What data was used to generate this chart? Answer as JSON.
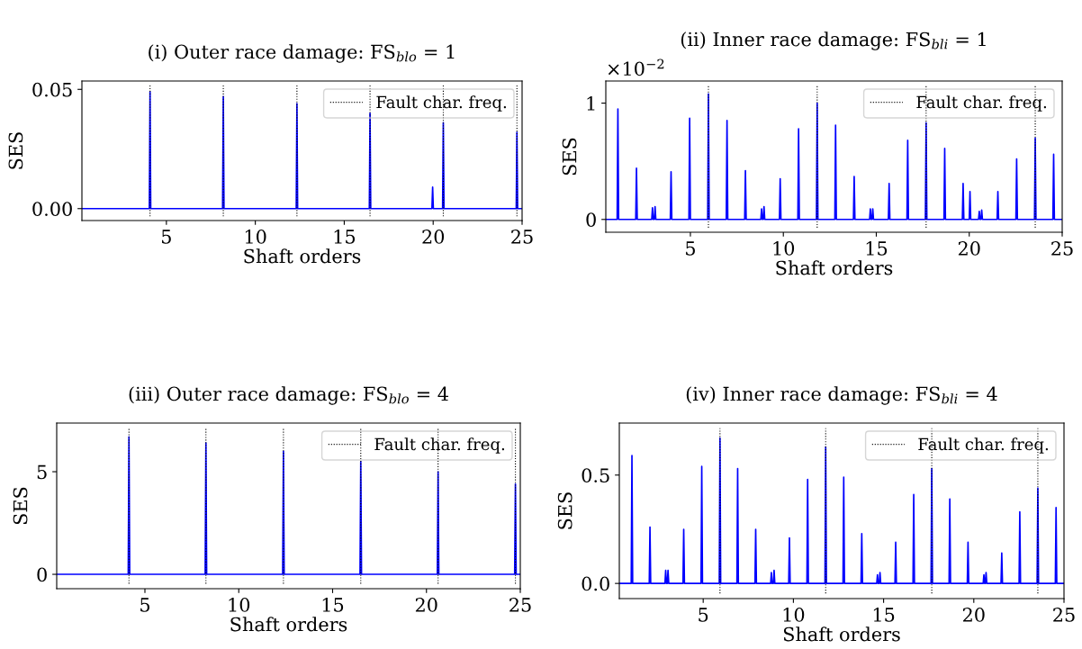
{
  "chart_data": [
    {
      "type": "line",
      "title": "(i) Outer race damage: FS$_{blo}$ = 1",
      "xlabel": "Shaft orders",
      "ylabel": "SES",
      "color": "#0000ff",
      "legend": "top right",
      "x": [
        0.25,
        4.04,
        4.08,
        4.12,
        8.16,
        8.2,
        8.24,
        12.3,
        12.34,
        12.38,
        16.41,
        16.45,
        16.49,
        19.93,
        19.97,
        20.01,
        20.53,
        20.57,
        20.61,
        24.67,
        24.71,
        24.75,
        25
      ],
      "values": [
        0,
        0,
        0.049,
        0,
        0,
        0.047,
        0,
        0,
        0.044,
        0,
        0,
        0.04,
        0,
        0,
        0.009,
        0,
        0,
        0.036,
        0,
        0,
        0.032,
        0,
        0
      ],
      "xlim": [
        0.25,
        25
      ],
      "ylim": [
        -0.005,
        0.0535
      ],
      "xticks": [
        5,
        10,
        15,
        20,
        25
      ],
      "yticks": [
        {
          "value": 0,
          "label": "0.00"
        },
        0.05
      ],
      "ref_lines": [
        {
          "axis": "x",
          "value": 4.08,
          "label": "Fault char. freq.",
          "color": "#000000",
          "line_style": "dotted"
        },
        {
          "axis": "x",
          "value": 8.2,
          "color": "#000000",
          "line_style": "dotted"
        },
        {
          "axis": "x",
          "value": 12.34,
          "color": "#000000",
          "line_style": "dotted"
        },
        {
          "axis": "x",
          "value": 16.45,
          "color": "#000000",
          "line_style": "dotted"
        },
        {
          "axis": "x",
          "value": 20.57,
          "color": "#000000",
          "line_style": "dotted"
        },
        {
          "axis": "x",
          "value": 24.71,
          "color": "#000000",
          "line_style": "dotted"
        }
      ]
    },
    {
      "type": "line",
      "title": "(ii) Inner race damage: FS$_{bli}$ = 1",
      "xlabel": "Shaft orders",
      "ylabel": "SES",
      "color": "#0000ff",
      "legend": "top right",
      "annotations": [
        "×10$^{−2}$"
      ],
      "x": [
        0.45,
        1.06,
        1.1,
        1.14,
        2.06,
        2.1,
        2.14,
        2.92,
        2.96,
        3.0,
        3.06,
        3.1,
        3.14,
        3.92,
        3.96,
        4.0,
        4.92,
        4.96,
        5.0,
        5.93,
        5.97,
        6.01,
        6.93,
        6.97,
        7.01,
        7.92,
        7.96,
        8.0,
        8.79,
        8.83,
        8.87,
        8.92,
        8.96,
        9.0,
        9.79,
        9.83,
        9.87,
        10.78,
        10.82,
        10.86,
        11.78,
        11.82,
        11.86,
        12.77,
        12.81,
        12.85,
        13.77,
        13.81,
        13.85,
        14.64,
        14.68,
        14.72,
        14.77,
        14.81,
        14.85,
        15.65,
        15.69,
        15.73,
        16.65,
        16.69,
        16.73,
        17.64,
        17.68,
        17.72,
        18.64,
        18.68,
        18.72,
        19.63,
        19.67,
        19.71,
        20.0,
        20.04,
        20.08,
        20.5,
        20.54,
        20.58,
        20.63,
        20.67,
        20.71,
        21.5,
        21.54,
        21.58,
        22.51,
        22.55,
        22.59,
        23.51,
        23.55,
        23.59,
        24.5,
        24.54,
        24.58,
        25
      ],
      "values": [
        0,
        0,
        0.95,
        0,
        0,
        0.44,
        0,
        0,
        0.1,
        0,
        0,
        0.11,
        0,
        0,
        0.41,
        0,
        0,
        0.87,
        0,
        0,
        1.08,
        0,
        0,
        0.85,
        0,
        0,
        0.42,
        0,
        0,
        0.09,
        0,
        0,
        0.11,
        0,
        0,
        0.35,
        0,
        0,
        0.78,
        0,
        0,
        1.0,
        0,
        0,
        0.81,
        0,
        0,
        0.37,
        0,
        0,
        0.09,
        0,
        0,
        0.09,
        0,
        0,
        0.31,
        0,
        0,
        0.68,
        0,
        0,
        0.83,
        0,
        0,
        0.61,
        0,
        0,
        0.31,
        0,
        0,
        0.24,
        0,
        0,
        0.07,
        0,
        0,
        0.08,
        0,
        0,
        0.24,
        0,
        0,
        0.52,
        0,
        0,
        0.7,
        0,
        0,
        0.56,
        0,
        0
      ],
      "xlim": [
        0.45,
        25
      ],
      "ylim": [
        -0.11,
        1.19
      ],
      "xticks": [
        5,
        10,
        15,
        20,
        25
      ],
      "yticks": [
        0,
        1
      ],
      "ref_lines": [
        {
          "axis": "x",
          "value": 5.97,
          "label": "Fault char. freq.",
          "color": "#000000",
          "line_style": "dotted"
        },
        {
          "axis": "x",
          "value": 11.82,
          "color": "#000000",
          "line_style": "dotted"
        },
        {
          "axis": "x",
          "value": 17.68,
          "color": "#000000",
          "line_style": "dotted"
        },
        {
          "axis": "x",
          "value": 23.55,
          "color": "#000000",
          "line_style": "dotted"
        }
      ]
    },
    {
      "type": "line",
      "title": "(iii) Outer race damage: FS$_{blo}$ = 4",
      "xlabel": "Shaft orders",
      "ylabel": "SES",
      "color": "#0000ff",
      "legend": "top right",
      "x": [
        0.3,
        4.11,
        4.15,
        4.19,
        8.21,
        8.25,
        8.29,
        12.34,
        12.38,
        12.42,
        16.46,
        16.5,
        16.54,
        20.58,
        20.62,
        20.66,
        24.7,
        24.74,
        24.78,
        25
      ],
      "values": [
        0,
        0,
        6.7,
        0,
        0,
        6.4,
        0,
        0,
        6.0,
        0,
        0,
        5.5,
        0,
        0,
        5.0,
        0,
        0,
        4.4,
        0,
        0
      ],
      "xlim": [
        0.3,
        25
      ],
      "ylim": [
        -0.7,
        7.37
      ],
      "xticks": [
        5,
        10,
        15,
        20,
        25
      ],
      "yticks": [
        0,
        5
      ],
      "ref_lines": [
        {
          "axis": "x",
          "value": 4.15,
          "label": "Fault char. freq.",
          "color": "#000000",
          "line_style": "dotted"
        },
        {
          "axis": "x",
          "value": 8.25,
          "color": "#000000",
          "line_style": "dotted"
        },
        {
          "axis": "x",
          "value": 12.38,
          "color": "#000000",
          "line_style": "dotted"
        },
        {
          "axis": "x",
          "value": 16.5,
          "color": "#000000",
          "line_style": "dotted"
        },
        {
          "axis": "x",
          "value": 20.62,
          "color": "#000000",
          "line_style": "dotted"
        },
        {
          "axis": "x",
          "value": 24.74,
          "color": "#000000",
          "line_style": "dotted"
        }
      ]
    },
    {
      "type": "line",
      "title": "(iv) Inner race damage: FS$_{bli}$ = 4",
      "xlabel": "Shaft orders",
      "ylabel": "SES",
      "color": "#0000ff",
      "legend": "top right",
      "x": [
        0.35,
        1.01,
        1.05,
        1.09,
        2.01,
        2.05,
        2.09,
        2.88,
        2.92,
        2.96,
        3.01,
        3.05,
        3.09,
        3.88,
        3.92,
        3.96,
        4.88,
        4.92,
        4.96,
        5.89,
        5.93,
        5.97,
        6.87,
        6.91,
        6.95,
        7.87,
        7.91,
        7.95,
        8.74,
        8.78,
        8.82,
        8.89,
        8.93,
        8.97,
        9.74,
        9.78,
        9.82,
        10.75,
        10.79,
        10.83,
        11.75,
        11.79,
        11.83,
        12.75,
        12.79,
        12.83,
        13.75,
        13.79,
        13.83,
        14.62,
        14.66,
        14.7,
        14.76,
        14.8,
        14.84,
        15.63,
        15.67,
        15.71,
        16.63,
        16.67,
        16.71,
        17.63,
        17.67,
        17.71,
        18.63,
        18.67,
        18.71,
        19.64,
        19.68,
        19.72,
        20.52,
        20.56,
        20.6,
        20.64,
        20.68,
        20.72,
        21.51,
        21.55,
        21.59,
        22.51,
        22.55,
        22.59,
        23.51,
        23.55,
        23.59,
        24.52,
        24.56,
        24.6,
        25
      ],
      "values": [
        0,
        0,
        0.59,
        0,
        0,
        0.26,
        0,
        0,
        0.06,
        0,
        0,
        0.06,
        0,
        0,
        0.25,
        0,
        0,
        0.54,
        0,
        0,
        0.67,
        0,
        0,
        0.53,
        0,
        0,
        0.25,
        0,
        0,
        0.05,
        0,
        0,
        0.06,
        0,
        0,
        0.21,
        0,
        0,
        0.48,
        0,
        0,
        0.63,
        0,
        0,
        0.49,
        0,
        0,
        0.23,
        0,
        0,
        0.04,
        0,
        0,
        0.05,
        0,
        0,
        0.19,
        0,
        0,
        0.41,
        0,
        0,
        0.53,
        0,
        0,
        0.39,
        0,
        0,
        0.19,
        0,
        0,
        0.04,
        0,
        0,
        0.05,
        0,
        0,
        0.14,
        0,
        0,
        0.33,
        0,
        0,
        0.44,
        0,
        0,
        0.35,
        0,
        0
      ],
      "xlim": [
        0.35,
        25
      ],
      "ylim": [
        -0.07,
        0.74
      ],
      "xticks": [
        5,
        10,
        15,
        20,
        25
      ],
      "yticks": [
        {
          "value": 0,
          "label": "0.0"
        },
        0.5
      ],
      "ref_lines": [
        {
          "axis": "x",
          "value": 5.93,
          "label": "Fault char. freq.",
          "color": "#000000",
          "line_style": "dotted"
        },
        {
          "axis": "x",
          "value": 11.79,
          "color": "#000000",
          "line_style": "dotted"
        },
        {
          "axis": "x",
          "value": 17.67,
          "color": "#000000",
          "line_style": "dotted"
        },
        {
          "axis": "x",
          "value": 23.55,
          "color": "#000000",
          "line_style": "dotted"
        }
      ]
    }
  ]
}
